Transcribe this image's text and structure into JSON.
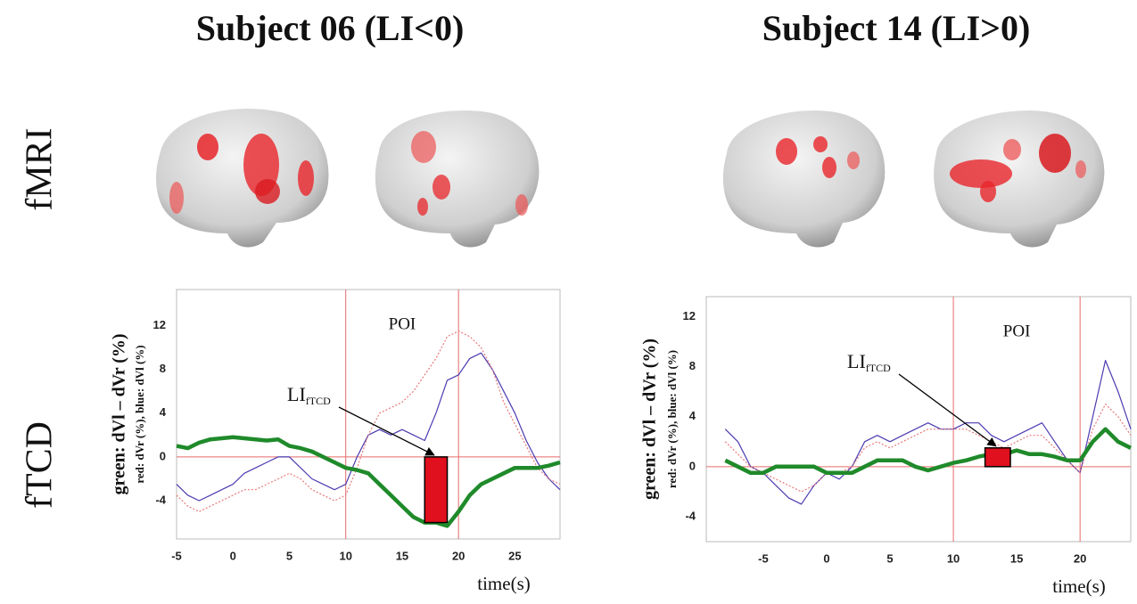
{
  "row_labels": [
    "fMRI",
    "fTCD"
  ],
  "chart_data": [
    {
      "type": "line",
      "title": "Subject 06 (LI<0)",
      "ylabel": "green: dVl – dVr (%)",
      "ylabel2": "red: dVr (%), blue: dVl (%)",
      "xlabel": "time(s)",
      "poi_label": "POI",
      "poi": [
        10,
        20
      ],
      "li_label": {
        "text": "LI",
        "subscript": "fTCD"
      },
      "li_bar": {
        "x": [
          17,
          19
        ],
        "value": -6
      },
      "xlim": [
        -5,
        29
      ],
      "ylim": [
        -7.5,
        15.3
      ],
      "xticks": [
        -5,
        0,
        5,
        10,
        15,
        20,
        25
      ],
      "yticks": [
        -4,
        0,
        4,
        8,
        12
      ],
      "x": [
        -5,
        -4,
        -3,
        -2,
        -1,
        0,
        1,
        2,
        3,
        4,
        5,
        6,
        7,
        8,
        9,
        10,
        11,
        12,
        13,
        14,
        15,
        16,
        17,
        18,
        19,
        20,
        21,
        22,
        23,
        24,
        25,
        26,
        27,
        28,
        29
      ],
      "series": [
        {
          "color": "#1f8a2a",
          "values": [
            1,
            0.8,
            1.3,
            1.6,
            1.7,
            1.8,
            1.7,
            1.6,
            1.5,
            1.6,
            1,
            0.8,
            0.5,
            0,
            -0.5,
            -1,
            -1.2,
            -1.5,
            -2.5,
            -3.5,
            -4.5,
            -5.5,
            -6,
            -6,
            -6.3,
            -5,
            -3.5,
            -2.5,
            -2,
            -1.5,
            -1,
            -1,
            -1,
            -0.8,
            -0.5
          ]
        },
        {
          "color": "#e8787a",
          "values": [
            -3.5,
            -4.5,
            -5,
            -4.5,
            -4,
            -3.5,
            -3,
            -3,
            -2.5,
            -2,
            -1.5,
            -2,
            -3,
            -3.5,
            -4,
            -3.5,
            -1,
            2,
            4,
            4.5,
            5,
            6,
            7.5,
            9,
            11,
            11.5,
            11,
            10,
            8,
            5,
            3,
            1,
            -1,
            -2,
            -2.5
          ]
        },
        {
          "color": "#4b3bb0",
          "values": [
            -2.5,
            -3.5,
            -4,
            -3.5,
            -3,
            -2.5,
            -1.5,
            -1,
            -0.5,
            0,
            0,
            -1,
            -2,
            -2.5,
            -3,
            -2.5,
            0,
            2,
            2.5,
            2,
            2.5,
            2,
            1.5,
            4,
            7,
            7.5,
            9,
            9.5,
            8,
            6,
            4,
            1.5,
            -0.5,
            -2,
            -3
          ]
        }
      ]
    },
    {
      "type": "line",
      "title": "Subject 14 (LI>0)",
      "ylabel": "green: dVl – dVr (%)",
      "ylabel2": "red: dVr (%), blue: dVl (%)",
      "xlabel": "time(s)",
      "poi_label": "POI",
      "poi": [
        10,
        20
      ],
      "li_label": {
        "text": "LI",
        "subscript": "fTCD"
      },
      "li_bar": {
        "x": [
          12.5,
          14.5
        ],
        "value": 1.5
      },
      "xlim": [
        -9.5,
        24
      ],
      "ylim": [
        -6,
        13.6
      ],
      "xticks": [
        -5,
        0,
        5,
        10,
        15,
        20
      ],
      "yticks": [
        -4,
        0,
        4,
        8,
        12
      ],
      "x": [
        -8,
        -7,
        -6,
        -5,
        -4,
        -3,
        -2,
        -1,
        0,
        1,
        2,
        3,
        4,
        5,
        6,
        7,
        8,
        9,
        10,
        11,
        12,
        13,
        14,
        15,
        16,
        17,
        18,
        19,
        20,
        21,
        22,
        23,
        24
      ],
      "series": [
        {
          "color": "#1f8a2a",
          "values": [
            0.5,
            0,
            -0.5,
            -0.5,
            0,
            0,
            0,
            0,
            -0.5,
            -0.5,
            -0.5,
            0,
            0.5,
            0.5,
            0.5,
            0,
            -0.3,
            0,
            0.3,
            0.5,
            0.8,
            1,
            1,
            1.3,
            1,
            1,
            0.8,
            0.5,
            0.5,
            2,
            3,
            2,
            1.5
          ]
        },
        {
          "color": "#e8787a",
          "values": [
            2,
            1,
            0,
            -0.5,
            -1,
            -1.5,
            -2,
            -1.5,
            -0.5,
            -0.5,
            0,
            1.5,
            2,
            1.5,
            2,
            2.5,
            3,
            3,
            3,
            3,
            2.5,
            2,
            1.5,
            2,
            2.5,
            2.5,
            1.5,
            0.5,
            -0.5,
            3,
            5,
            4,
            2.5
          ]
        },
        {
          "color": "#4b3bb0",
          "values": [
            3,
            2,
            0,
            -0.5,
            -1.5,
            -2.5,
            -3,
            -1.5,
            -0.5,
            -1,
            0,
            2,
            2.5,
            2,
            2.5,
            3,
            3.5,
            3,
            3,
            3.5,
            3.5,
            2.5,
            2,
            2.5,
            3,
            3.5,
            2,
            0.5,
            -0.5,
            4,
            8.5,
            6,
            3
          ]
        }
      ]
    }
  ]
}
